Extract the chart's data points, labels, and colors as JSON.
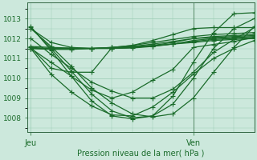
{
  "background_color": "#cce8dc",
  "grid_color": "#99ccb3",
  "line_color": "#1a6b2a",
  "axis_color": "#336644",
  "ylabel_ticks": [
    1008,
    1009,
    1010,
    1011,
    1012,
    1013
  ],
  "xlabel": "Pression niveau de la mer( hPa )",
  "xtick_labels": [
    "Jeu",
    "Ven"
  ],
  "xtick_positions": [
    0,
    24
  ],
  "xlim": [
    -0.5,
    33
  ],
  "ylim": [
    1007.3,
    1013.8
  ],
  "vline_x": 24,
  "lines": [
    [
      0,
      1012.5,
      3,
      1011.8,
      6,
      1011.55,
      9,
      1011.5,
      12,
      1011.55,
      15,
      1011.65,
      18,
      1011.8,
      21,
      1011.95,
      24,
      1012.1,
      27,
      1012.2,
      30,
      1012.25,
      33,
      1012.3
    ],
    [
      0,
      1011.6,
      3,
      1011.55,
      6,
      1011.52,
      9,
      1011.5,
      12,
      1011.52,
      15,
      1011.6,
      18,
      1011.72,
      21,
      1011.85,
      24,
      1012.0,
      27,
      1012.1,
      30,
      1012.15,
      33,
      1012.2
    ],
    [
      0,
      1011.55,
      3,
      1011.5,
      6,
      1011.5,
      9,
      1011.5,
      12,
      1011.5,
      15,
      1011.55,
      18,
      1011.65,
      21,
      1011.8,
      24,
      1012.0,
      27,
      1012.05,
      30,
      1012.1,
      33,
      1012.15
    ],
    [
      0,
      1011.5,
      3,
      1011.5,
      6,
      1011.5,
      9,
      1011.5,
      12,
      1011.5,
      15,
      1011.52,
      18,
      1011.6,
      21,
      1011.72,
      24,
      1011.9,
      27,
      1012.0,
      30,
      1012.05,
      33,
      1012.1
    ],
    [
      0,
      1011.5,
      3,
      1011.48,
      6,
      1011.48,
      9,
      1011.5,
      12,
      1011.52,
      15,
      1011.55,
      18,
      1011.62,
      21,
      1011.72,
      24,
      1011.85,
      27,
      1011.95,
      30,
      1012.0,
      33,
      1012.05
    ],
    [
      0,
      1011.5,
      3,
      1011.45,
      6,
      1011.45,
      9,
      1011.5,
      12,
      1011.55,
      15,
      1011.6,
      18,
      1011.65,
      21,
      1011.72,
      24,
      1011.8,
      27,
      1011.9,
      30,
      1011.95,
      33,
      1012.0
    ],
    [
      0,
      1011.55,
      3,
      1010.5,
      6,
      1010.3,
      9,
      1010.3,
      12,
      1011.55,
      15,
      1011.65,
      18,
      1011.9,
      21,
      1012.2,
      24,
      1012.5,
      27,
      1012.55,
      30,
      1012.55,
      33,
      1012.55
    ],
    [
      0,
      1011.5,
      3,
      1010.8,
      6,
      1010.1,
      9,
      1009.4,
      12,
      1009.0,
      15,
      1009.3,
      18,
      1009.9,
      21,
      1010.45,
      24,
      1011.55,
      27,
      1011.7,
      30,
      1011.85,
      33,
      1012.05
    ],
    [
      0,
      1011.5,
      3,
      1010.2,
      6,
      1009.3,
      9,
      1008.6,
      12,
      1008.15,
      15,
      1008.1,
      18,
      1008.55,
      21,
      1009.3,
      24,
      1010.2,
      27,
      1011.0,
      30,
      1011.5,
      33,
      1011.9
    ],
    [
      0,
      1012.0,
      3,
      1011.2,
      6,
      1010.5,
      9,
      1009.8,
      12,
      1009.35,
      15,
      1009.0,
      18,
      1009.0,
      21,
      1009.45,
      24,
      1010.3,
      27,
      1011.3,
      30,
      1011.95,
      33,
      1012.55
    ],
    [
      0,
      1012.5,
      3,
      1011.6,
      6,
      1010.6,
      9,
      1009.5,
      12,
      1008.75,
      15,
      1008.2,
      18,
      1008.05,
      21,
      1008.2,
      24,
      1009.0,
      27,
      1010.3,
      30,
      1011.55,
      33,
      1012.6
    ],
    [
      0,
      1012.55,
      3,
      1011.5,
      6,
      1010.35,
      9,
      1009.2,
      12,
      1008.35,
      15,
      1008.0,
      18,
      1008.1,
      21,
      1008.7,
      24,
      1010.0,
      27,
      1011.5,
      30,
      1012.5,
      33,
      1013.0
    ],
    [
      0,
      1012.6,
      3,
      1011.4,
      6,
      1010.1,
      9,
      1008.85,
      12,
      1008.1,
      15,
      1007.95,
      18,
      1008.1,
      21,
      1009.1,
      24,
      1010.8,
      27,
      1012.3,
      30,
      1013.25,
      33,
      1013.3
    ]
  ],
  "marker": "+",
  "markersize": 4,
  "linewidth": 0.9
}
